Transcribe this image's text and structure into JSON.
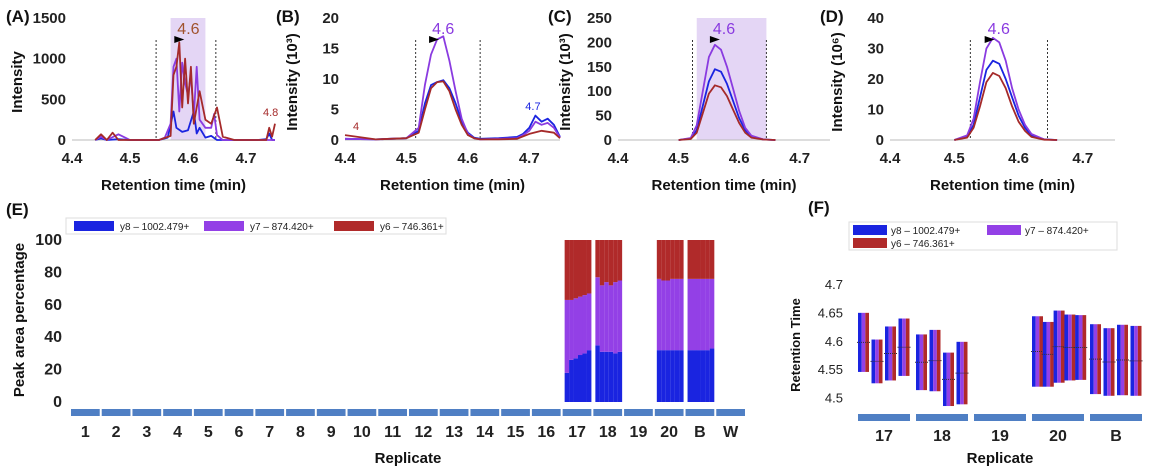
{
  "colors": {
    "y8": "#1a24e0",
    "y7": "#8a3be0",
    "y6": "#a52a2a",
    "bar_blue": "#1a24e0",
    "bar_purple": "#9340e6",
    "bar_red": "#b02a2a",
    "highlight": "#e4d6f5",
    "replicate_bar": "#4f7fc4"
  },
  "chart_data": [
    {
      "panel": "(A)",
      "type": "line",
      "xlabel": "Retention time (min)",
      "ylabel": "Intensity",
      "xlim": [
        4.4,
        4.75
      ],
      "ylim": [
        0,
        1500
      ],
      "xticks": [
        "4.4",
        "4.5",
        "4.6",
        "4.7"
      ],
      "yticks": [
        "0",
        "500",
        "1000",
        "1500"
      ],
      "peak_label": "4.6",
      "peak_label_color": "#a0522d",
      "extra_label": "4.8",
      "highlight_range": [
        4.57,
        4.63
      ],
      "boundaries": [
        4.545,
        4.648
      ],
      "peak_marker_x": 4.585,
      "series": [
        {
          "name": "y8",
          "x": [
            4.44,
            4.45,
            4.46,
            4.48,
            4.5,
            4.52,
            4.55,
            4.565,
            4.575,
            4.58,
            4.59,
            4.6,
            4.61,
            4.615,
            4.62,
            4.63,
            4.64,
            4.65,
            4.66,
            4.68,
            4.7,
            4.72,
            4.735,
            4.74,
            4.745,
            4.75
          ],
          "y": [
            0,
            20,
            0,
            10,
            0,
            0,
            0,
            30,
            350,
            150,
            100,
            120,
            350,
            80,
            150,
            30,
            50,
            0,
            0,
            0,
            0,
            0,
            10,
            80,
            0,
            0
          ]
        },
        {
          "name": "y7",
          "x": [
            4.44,
            4.45,
            4.46,
            4.48,
            4.5,
            4.52,
            4.55,
            4.56,
            4.57,
            4.575,
            4.58,
            4.585,
            4.59,
            4.595,
            4.6,
            4.605,
            4.61,
            4.615,
            4.62,
            4.63,
            4.64,
            4.645,
            4.65,
            4.66,
            4.68,
            4.7,
            4.72,
            4.74,
            4.75
          ],
          "y": [
            0,
            40,
            0,
            70,
            0,
            0,
            0,
            30,
            200,
            900,
            1000,
            350,
            950,
            700,
            550,
            800,
            300,
            900,
            250,
            150,
            150,
            320,
            60,
            0,
            0,
            0,
            0,
            0,
            0
          ]
        },
        {
          "name": "y6",
          "x": [
            4.44,
            4.45,
            4.46,
            4.47,
            4.48,
            4.49,
            4.5,
            4.52,
            4.55,
            4.57,
            4.575,
            4.58,
            4.585,
            4.59,
            4.595,
            4.6,
            4.605,
            4.61,
            4.62,
            4.63,
            4.64,
            4.65,
            4.66,
            4.68,
            4.7,
            4.72,
            4.735,
            4.74,
            4.745,
            4.75
          ],
          "y": [
            0,
            70,
            0,
            90,
            0,
            0,
            0,
            0,
            0,
            50,
            800,
            900,
            1200,
            400,
            1000,
            450,
            900,
            200,
            600,
            250,
            200,
            400,
            40,
            0,
            0,
            0,
            0,
            150,
            40,
            200
          ]
        }
      ]
    },
    {
      "panel": "(B)",
      "type": "line",
      "xlabel": "Retention time (min)",
      "ylabel": "Intensity (10³)",
      "xlim": [
        4.4,
        4.75
      ],
      "ylim": [
        0,
        20
      ],
      "xticks": [
        "4.4",
        "4.5",
        "4.6",
        "4.7"
      ],
      "yticks": [
        "0",
        "5",
        "10",
        "15",
        "20"
      ],
      "peak_label": "4.6",
      "peak_label_color": "#8a3be0",
      "extra_label": "4.7",
      "extra_label_small": "4",
      "boundaries": [
        4.515,
        4.62
      ],
      "peak_marker_x": 4.545,
      "series": [
        {
          "name": "y8",
          "x": [
            4.4,
            4.45,
            4.5,
            4.52,
            4.53,
            4.54,
            4.55,
            4.56,
            4.57,
            4.58,
            4.59,
            4.6,
            4.61,
            4.62,
            4.65,
            4.68,
            4.69,
            4.7,
            4.71,
            4.72,
            4.73,
            4.74,
            4.75
          ],
          "y": [
            0.2,
            0.1,
            0.3,
            1.5,
            6,
            9,
            9.5,
            9.8,
            8.5,
            6,
            3,
            1.2,
            0.4,
            0.2,
            0.3,
            0.5,
            1,
            2,
            4,
            3,
            3.5,
            2.5,
            0.5
          ]
        },
        {
          "name": "y7",
          "x": [
            4.4,
            4.45,
            4.5,
            4.52,
            4.53,
            4.54,
            4.55,
            4.56,
            4.57,
            4.58,
            4.59,
            4.6,
            4.61,
            4.62,
            4.65,
            4.68,
            4.69,
            4.7,
            4.71,
            4.72,
            4.73,
            4.74,
            4.75
          ],
          "y": [
            0.2,
            0.1,
            0.3,
            2,
            9,
            14,
            16.5,
            17,
            13,
            8,
            3.5,
            1,
            0.3,
            0.1,
            0.2,
            0.3,
            0.8,
            1.5,
            3,
            2.5,
            2.8,
            2,
            0.4
          ]
        },
        {
          "name": "y6",
          "x": [
            4.4,
            4.45,
            4.5,
            4.52,
            4.53,
            4.54,
            4.55,
            4.56,
            4.57,
            4.58,
            4.59,
            4.6,
            4.61,
            4.62,
            4.65,
            4.68,
            4.7,
            4.72,
            4.74,
            4.75
          ],
          "y": [
            0.8,
            0.1,
            0.3,
            1.2,
            5,
            8.5,
            9.5,
            9.6,
            8,
            5,
            2.5,
            0.8,
            0.3,
            0.1,
            0.1,
            0.2,
            1,
            1.5,
            1.2,
            0.3
          ]
        }
      ]
    },
    {
      "panel": "(C)",
      "type": "line",
      "xlabel": "Retention time (min)",
      "ylabel": "Intensity (10³)",
      "xlim": [
        4.4,
        4.75
      ],
      "ylim": [
        0,
        250
      ],
      "xticks": [
        "4.4",
        "4.5",
        "4.6",
        "4.7"
      ],
      "yticks": [
        "0",
        "50",
        "100",
        "150",
        "200",
        "250"
      ],
      "peak_label": "4.6",
      "peak_label_color": "#8a3be0",
      "highlight_range": [
        4.53,
        4.645
      ],
      "boundaries": [
        4.523,
        4.645
      ],
      "peak_marker_x": 4.56,
      "series": [
        {
          "name": "y8",
          "x": [
            4.5,
            4.52,
            4.53,
            4.54,
            4.55,
            4.56,
            4.57,
            4.58,
            4.59,
            4.6,
            4.61,
            4.62,
            4.64,
            4.66
          ],
          "y": [
            0,
            3,
            20,
            70,
            120,
            145,
            140,
            115,
            80,
            45,
            20,
            8,
            1,
            0
          ]
        },
        {
          "name": "y7",
          "x": [
            4.5,
            4.52,
            4.53,
            4.54,
            4.55,
            4.56,
            4.57,
            4.58,
            4.59,
            4.6,
            4.61,
            4.62,
            4.64,
            4.66
          ],
          "y": [
            0,
            4,
            30,
            100,
            170,
            195,
            185,
            150,
            105,
            60,
            25,
            9,
            1,
            0
          ]
        },
        {
          "name": "y6",
          "x": [
            4.5,
            4.52,
            4.53,
            4.54,
            4.55,
            4.56,
            4.57,
            4.58,
            4.59,
            4.6,
            4.61,
            4.62,
            4.64,
            4.66
          ],
          "y": [
            0,
            2,
            15,
            55,
            95,
            112,
            108,
            90,
            62,
            35,
            15,
            5,
            1,
            0
          ]
        }
      ]
    },
    {
      "panel": "(D)",
      "type": "line",
      "xlabel": "Retention time (min)",
      "ylabel": "Intensity (10⁶)",
      "xlim": [
        4.4,
        4.75
      ],
      "ylim": [
        0,
        40
      ],
      "xticks": [
        "4.4",
        "4.5",
        "4.6",
        "4.7"
      ],
      "yticks": [
        "0",
        "10",
        "20",
        "30",
        "40"
      ],
      "peak_label": "4.6",
      "peak_label_color": "#8a3be0",
      "boundaries": [
        4.525,
        4.645
      ],
      "peak_marker_x": 4.555,
      "series": [
        {
          "name": "y8",
          "x": [
            4.5,
            4.52,
            4.53,
            4.54,
            4.55,
            4.56,
            4.57,
            4.58,
            4.59,
            4.6,
            4.61,
            4.62,
            4.64,
            4.66
          ],
          "y": [
            0,
            1,
            5,
            14,
            23,
            26,
            25,
            20,
            14,
            8,
            4,
            1.5,
            0.2,
            0
          ]
        },
        {
          "name": "y7",
          "x": [
            4.5,
            4.52,
            4.53,
            4.54,
            4.55,
            4.56,
            4.57,
            4.58,
            4.59,
            4.6,
            4.61,
            4.62,
            4.64,
            4.66
          ],
          "y": [
            0,
            1.5,
            7,
            19,
            30,
            33.5,
            32,
            26,
            17,
            10,
            5,
            2,
            0.2,
            0
          ]
        },
        {
          "name": "y6",
          "x": [
            4.5,
            4.52,
            4.53,
            4.54,
            4.55,
            4.56,
            4.57,
            4.58,
            4.59,
            4.6,
            4.61,
            4.62,
            4.64,
            4.66
          ],
          "y": [
            0,
            0.8,
            4,
            11,
            19,
            22,
            21,
            17,
            11,
            6,
            3,
            1,
            0.1,
            0
          ]
        }
      ]
    },
    {
      "panel": "(E)",
      "type": "bar",
      "stacked": true,
      "xlabel": "Replicate",
      "ylabel": "Peak area percentage",
      "ylim": [
        0,
        100
      ],
      "yticks": [
        "0",
        "20",
        "40",
        "60",
        "80",
        "100"
      ],
      "categories": [
        "1",
        "2",
        "3",
        "4",
        "5",
        "6",
        "7",
        "8",
        "9",
        "10",
        "11",
        "12",
        "13",
        "14",
        "15",
        "16",
        "17",
        "18",
        "19",
        "20",
        "B",
        "W"
      ],
      "legend": [
        "y8 – 1002.479+",
        "y7 – 874.420+",
        "y6 – 746.361+"
      ],
      "groups": [
        {
          "category": "17",
          "y8": [
            18,
            26,
            27,
            29,
            30,
            32
          ],
          "y7": [
            45,
            37,
            37,
            36,
            36,
            35
          ]
        },
        {
          "category": "18",
          "y8": [
            35,
            31,
            31,
            31,
            30,
            31
          ],
          "y7": [
            42,
            41,
            43,
            41,
            44,
            44
          ]
        },
        {
          "category": "20",
          "y8": [
            32,
            32,
            32,
            32,
            32,
            32
          ],
          "y7": [
            44,
            43,
            43,
            44,
            44,
            44
          ]
        },
        {
          "category": "B",
          "y8": [
            32,
            32,
            32,
            32,
            32,
            33
          ],
          "y7": [
            44,
            44,
            44,
            44,
            44,
            43
          ]
        }
      ]
    },
    {
      "panel": "(F)",
      "type": "bar",
      "subtype": "floating-range",
      "xlabel": "Replicate",
      "ylabel": "Retention Time",
      "ylim": [
        4.48,
        4.7
      ],
      "yticks": [
        "4.5",
        "4.55",
        "4.6",
        "4.65",
        "4.7"
      ],
      "categories": [
        "17",
        "18",
        "19",
        "20",
        "B"
      ],
      "legend": [
        "y8 – 1002.479+",
        "y7 – 874.420+",
        "y6 – 746.361+"
      ],
      "groups": [
        {
          "category": "17",
          "ranges": [
            [
              4.547,
              4.651
            ],
            [
              4.527,
              4.604
            ],
            [
              4.532,
              4.627
            ],
            [
              4.54,
              4.641
            ]
          ]
        },
        {
          "category": "18",
          "ranges": [
            [
              4.515,
              4.613
            ],
            [
              4.513,
              4.621
            ],
            [
              4.487,
              4.581
            ],
            [
              4.49,
              4.6
            ]
          ]
        },
        {
          "category": "19",
          "ranges": []
        },
        {
          "category": "20",
          "ranges": [
            [
              4.521,
              4.645
            ],
            [
              4.521,
              4.635
            ],
            [
              4.528,
              4.655
            ],
            [
              4.532,
              4.648
            ],
            [
              4.533,
              4.647
            ]
          ]
        },
        {
          "category": "B",
          "ranges": [
            [
              4.508,
              4.631
            ],
            [
              4.505,
              4.624
            ],
            [
              4.506,
              4.63
            ],
            [
              4.505,
              4.628
            ]
          ]
        }
      ]
    }
  ]
}
